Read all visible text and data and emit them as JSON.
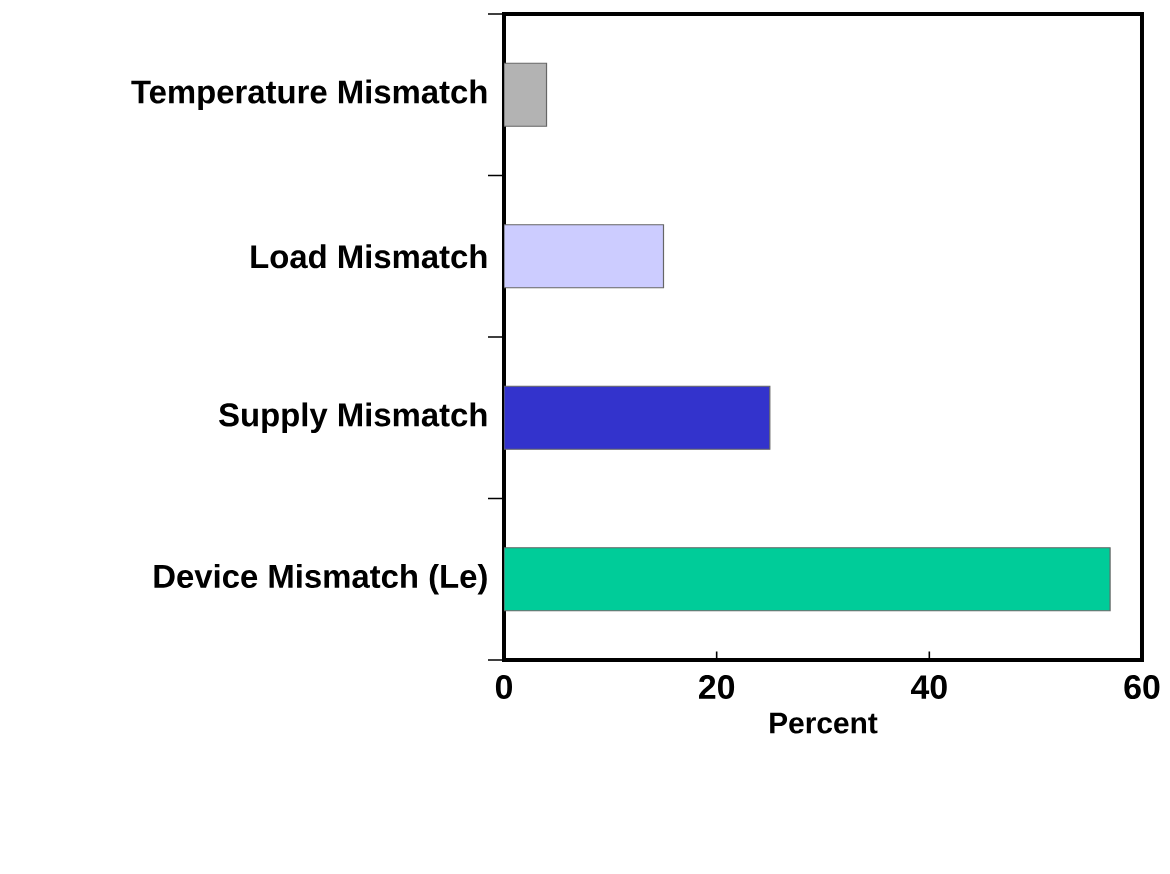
{
  "chart_data": {
    "type": "bar",
    "orientation": "horizontal",
    "xlabel": "Percent",
    "categories": [
      "Temperature Mismatch",
      "Load Mismatch",
      "Supply Mismatch",
      "Device Mismatch (Le)"
    ],
    "values": [
      4,
      15,
      25,
      57
    ],
    "colors": [
      "#b3b3b3",
      "#ccccff",
      "#3333cc",
      "#00cc99"
    ],
    "xlim": [
      0,
      60
    ],
    "xticks": [
      0,
      20,
      40,
      60
    ]
  }
}
